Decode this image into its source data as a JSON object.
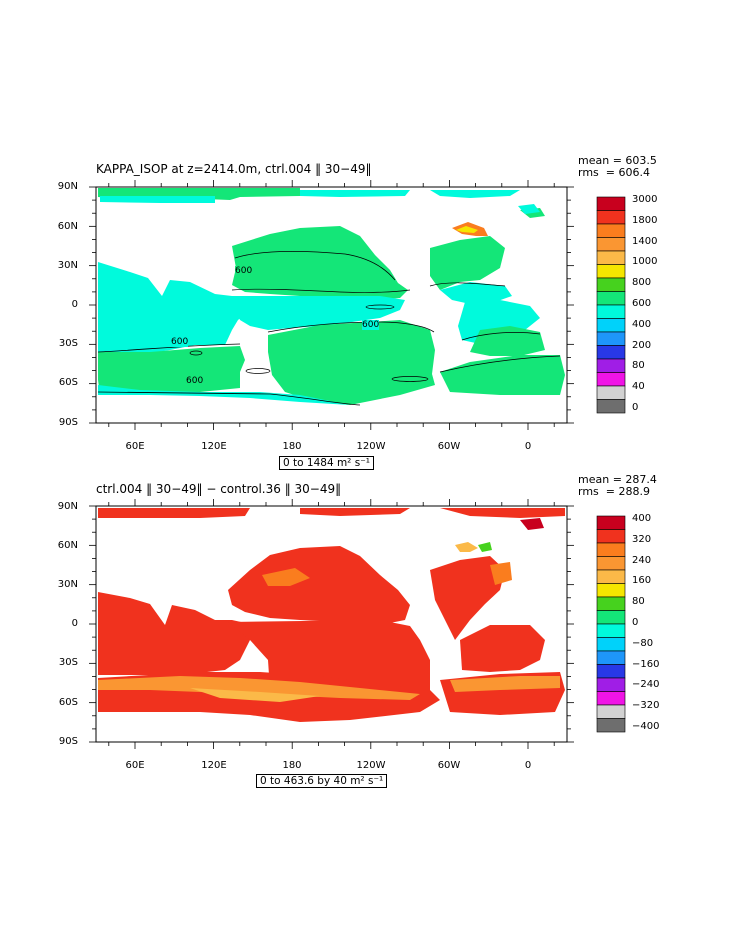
{
  "panels": [
    {
      "title": "KAPPA_ISOP at z=2414.0m, ctrl.004 ‖ 30−49‖",
      "mean": "mean = 603.5",
      "rms": "rms  = 606.4",
      "range": "0 to 1484 m² s⁻¹",
      "contour_labels": [
        "600",
        "600",
        "600",
        "600"
      ],
      "colorbar": {
        "labels": [
          "3000",
          "1800",
          "1400",
          "1000",
          "800",
          "600",
          "400",
          "200",
          "80",
          "40",
          "0"
        ],
        "colors": [
          "#c8001e",
          "#f0321e",
          "#fa7d1e",
          "#fa9632",
          "#fbb948",
          "#f5e600",
          "#46d21e",
          "#14e678",
          "#00fadc",
          "#00d2fa",
          "#1e96fa",
          "#2838e6",
          "#a01ee6",
          "#f014e6",
          "#d2d2d2",
          "#6e6e6e"
        ]
      }
    },
    {
      "title": "ctrl.004 ‖ 30−49‖ − control.36 ‖ 30−49‖",
      "mean": "mean = 287.4",
      "rms": "rms  = 288.9",
      "range": "0 to 463.6 by 40 m² s⁻¹",
      "colorbar": {
        "labels": [
          "400",
          "320",
          "240",
          "160",
          "80",
          "0",
          "−80",
          "−160",
          "−240",
          "−320",
          "−400"
        ],
        "colors": [
          "#c8001e",
          "#f0321e",
          "#fa7d1e",
          "#fa9632",
          "#fbb948",
          "#f5e600",
          "#46d21e",
          "#14e678",
          "#00fadc",
          "#00d2fa",
          "#1e96fa",
          "#2838e6",
          "#a01ee6",
          "#f014e6",
          "#d2d2d2",
          "#6e6e6e"
        ]
      }
    }
  ],
  "lat_labels": [
    "90N",
    "60N",
    "30N",
    "0",
    "30S",
    "60S",
    "90S"
  ],
  "lon_labels": [
    "60E",
    "120E",
    "180",
    "120W",
    "60W",
    "0"
  ]
}
